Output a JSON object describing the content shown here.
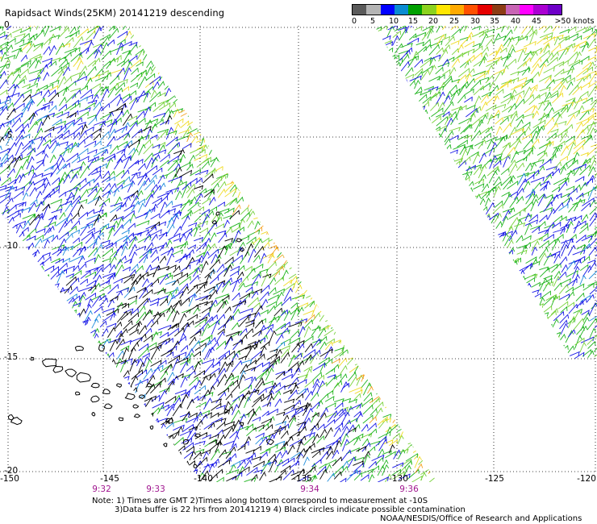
{
  "header": {
    "title": "Rapidsact Winds(25KM) 20141219 descending"
  },
  "legend": {
    "colors": [
      "#5a5a5a",
      "#b4b4b4",
      "#0000ff",
      "#0a8cd2",
      "#00a000",
      "#8cd21e",
      "#ffe600",
      "#ffaa00",
      "#ff5000",
      "#e60000",
      "#8c3c14",
      "#c864b4",
      "#ff00ff",
      "#aa00d2",
      "#6e00c8"
    ],
    "ticks": [
      "0",
      "5",
      "10",
      "15",
      "20",
      "25",
      "30",
      "35",
      "40",
      "45",
      ">50 knots"
    ]
  },
  "map": {
    "lat_labels": [
      "0",
      "-5",
      "-10",
      "-15",
      "-20"
    ],
    "lon_labels": [
      "-150",
      "-145",
      "-140",
      "-135",
      "-130",
      "-125",
      "-120"
    ],
    "time_labels": [
      "9:32",
      "9:33",
      "9:34",
      "9:36"
    ]
  },
  "footer": {
    "note_line1": "Note: 1) Times are GMT 2)Times along bottom correspond to measurement at -10S",
    "note_line2": "3)Data buffer is 22 hrs from 20141219 4) Black circles indicate possible contamination",
    "credit": "NOAA/NESDIS/Office of Research and Applications"
  }
}
